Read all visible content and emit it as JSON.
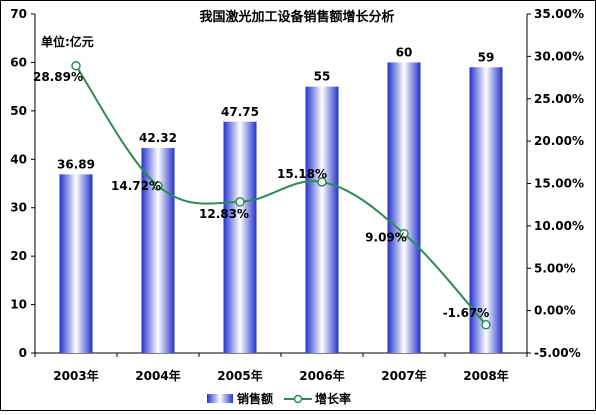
{
  "chart_data": {
    "type": "bar+line",
    "title": "我国激光加工设备销售额增长分析",
    "unit_label": "单位:亿元",
    "categories": [
      "2003年",
      "2004年",
      "2005年",
      "2006年",
      "2007年",
      "2008年"
    ],
    "series": [
      {
        "name": "销售额",
        "type": "bar",
        "axis": "left",
        "values": [
          36.89,
          42.32,
          47.75,
          55,
          60,
          59
        ],
        "labels": [
          "36.89",
          "42.32",
          "47.75",
          "55",
          "60",
          "59"
        ],
        "color": "#3a4fd8"
      },
      {
        "name": "增长率",
        "type": "line",
        "axis": "right",
        "values": [
          28.89,
          14.72,
          12.83,
          15.18,
          9.09,
          -1.67
        ],
        "labels": [
          "28.89%",
          "14.72%",
          "12.83%",
          "15.18%",
          "9.09%",
          "-1.67%"
        ],
        "color": "#2e8b57"
      }
    ],
    "y_left": {
      "min": 0,
      "max": 70,
      "ticks": [
        0,
        10,
        20,
        30,
        40,
        50,
        60,
        70
      ],
      "tick_labels": [
        "0",
        "10",
        "20",
        "30",
        "40",
        "50",
        "60",
        "70"
      ]
    },
    "y_right": {
      "min": -5,
      "max": 35,
      "ticks": [
        -5,
        0,
        5,
        10,
        15,
        20,
        25,
        30,
        35
      ],
      "tick_labels": [
        "-5.00%",
        "0.00%",
        "5.00%",
        "10.00%",
        "15.00%",
        "20.00%",
        "25.00%",
        "30.00%",
        "35.00%"
      ]
    },
    "grid": false,
    "legend_position": "bottom"
  }
}
